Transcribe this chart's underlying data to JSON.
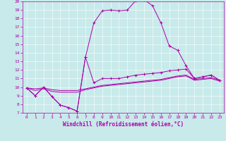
{
  "xlabel": "Windchill (Refroidissement éolien,°C)",
  "bg_color": "#c8eaea",
  "line_color": "#aa00aa",
  "xlim": [
    -0.5,
    23.5
  ],
  "ylim": [
    7,
    20
  ],
  "yticks": [
    7,
    8,
    9,
    10,
    11,
    12,
    13,
    14,
    15,
    16,
    17,
    18,
    19,
    20
  ],
  "xticks": [
    0,
    1,
    2,
    3,
    4,
    5,
    6,
    7,
    8,
    9,
    10,
    11,
    12,
    13,
    14,
    15,
    16,
    17,
    18,
    19,
    20,
    21,
    22,
    23
  ],
  "series_upper": [
    9.9,
    9.0,
    10.0,
    8.9,
    7.9,
    7.6,
    7.2,
    13.5,
    17.5,
    18.9,
    19.0,
    18.9,
    19.0,
    20.1,
    20.2,
    19.5,
    17.5,
    14.8,
    14.3,
    12.5,
    11.0,
    11.2,
    11.4,
    10.8
  ],
  "series_dip": [
    9.9,
    9.0,
    10.0,
    8.9,
    7.9,
    7.6,
    7.2,
    13.5,
    10.5,
    11.0,
    11.0,
    11.0,
    11.2,
    11.4,
    11.5,
    11.6,
    11.7,
    11.9,
    12.0,
    12.1,
    11.0,
    11.2,
    11.4,
    10.8
  ],
  "series_flat1": [
    9.9,
    9.8,
    9.9,
    9.7,
    9.6,
    9.6,
    9.6,
    9.8,
    10.0,
    10.2,
    10.3,
    10.4,
    10.5,
    10.6,
    10.7,
    10.8,
    10.9,
    11.1,
    11.3,
    11.4,
    10.9,
    11.0,
    11.1,
    10.8
  ],
  "series_flat2": [
    9.9,
    9.6,
    9.8,
    9.5,
    9.4,
    9.4,
    9.4,
    9.7,
    9.9,
    10.1,
    10.2,
    10.3,
    10.4,
    10.5,
    10.6,
    10.7,
    10.8,
    11.0,
    11.2,
    11.3,
    10.8,
    10.9,
    11.0,
    10.7
  ]
}
